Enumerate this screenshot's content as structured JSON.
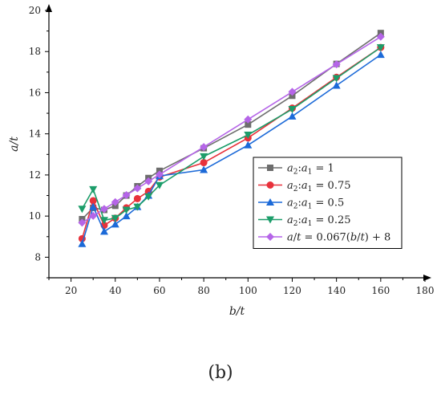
{
  "caption": "(b)",
  "chart_data": {
    "type": "line",
    "xlabel": "b/t",
    "ylabel": "a/t",
    "xlim": [
      10,
      180
    ],
    "ylim": [
      7,
      20
    ],
    "xticks": [
      20,
      40,
      60,
      80,
      100,
      120,
      140,
      160,
      180
    ],
    "yticks": [
      8,
      10,
      12,
      14,
      16,
      18,
      20
    ],
    "grid": false,
    "legend_position": "lower-right",
    "x": [
      25,
      30,
      35,
      40,
      45,
      50,
      55,
      60,
      80,
      100,
      120,
      140,
      160
    ],
    "series": [
      {
        "name": "a2:a1 = 1",
        "name_parts": {
          "v1": "a",
          "s1": "2",
          "sep": ":",
          "v2": "a",
          "s2": "1",
          "rest": " = 1"
        },
        "color": "#6d6d6d",
        "marker": "square",
        "values": [
          9.85,
          10.4,
          10.3,
          10.5,
          11.0,
          11.45,
          11.85,
          12.2,
          13.3,
          14.45,
          15.85,
          17.4,
          18.9
        ]
      },
      {
        "name": "a2:a1 = 0.75",
        "name_parts": {
          "v1": "a",
          "s1": "2",
          "sep": ":",
          "v2": "a",
          "s2": "1",
          "rest": " = 0.75"
        },
        "color": "#e8313b",
        "marker": "circle",
        "values": [
          8.9,
          10.75,
          9.55,
          9.9,
          10.4,
          10.85,
          11.2,
          11.9,
          12.6,
          13.8,
          15.25,
          16.75,
          18.2
        ]
      },
      {
        "name": "a2:a1 = 0.5",
        "name_parts": {
          "v1": "a",
          "s1": "2",
          "sep": ":",
          "v2": "a",
          "s2": "1",
          "rest": " = 0.5"
        },
        "color": "#1c6ad8",
        "marker": "triangle-up",
        "values": [
          8.65,
          10.45,
          9.25,
          9.6,
          10.0,
          10.45,
          11.0,
          11.95,
          12.25,
          13.45,
          14.85,
          16.35,
          17.85
        ]
      },
      {
        "name": "a2:a1 = 0.25",
        "name_parts": {
          "v1": "a",
          "s1": "2",
          "sep": ":",
          "v2": "a",
          "s2": "1",
          "rest": " = 0.25"
        },
        "color": "#1c9d6a",
        "marker": "triangle-down",
        "values": [
          10.35,
          11.3,
          9.8,
          9.9,
          10.3,
          10.45,
          10.95,
          11.5,
          12.9,
          13.95,
          15.2,
          16.7,
          18.2
        ]
      },
      {
        "name": "a/t = 0.067(b/t) + 8",
        "name_parts": {
          "v1": "a",
          "s1": "",
          "sep": "/",
          "v2": "t",
          "s2": "",
          "rest": " = 0.067(",
          "v3": "b",
          "sep2": "/",
          "v4": "t",
          "rest2": ") + 8"
        },
        "color": "#b565e8",
        "marker": "diamond",
        "values": [
          9.68,
          10.01,
          10.35,
          10.68,
          11.02,
          11.35,
          11.69,
          12.02,
          13.36,
          14.7,
          16.04,
          17.38,
          18.72
        ]
      }
    ]
  }
}
